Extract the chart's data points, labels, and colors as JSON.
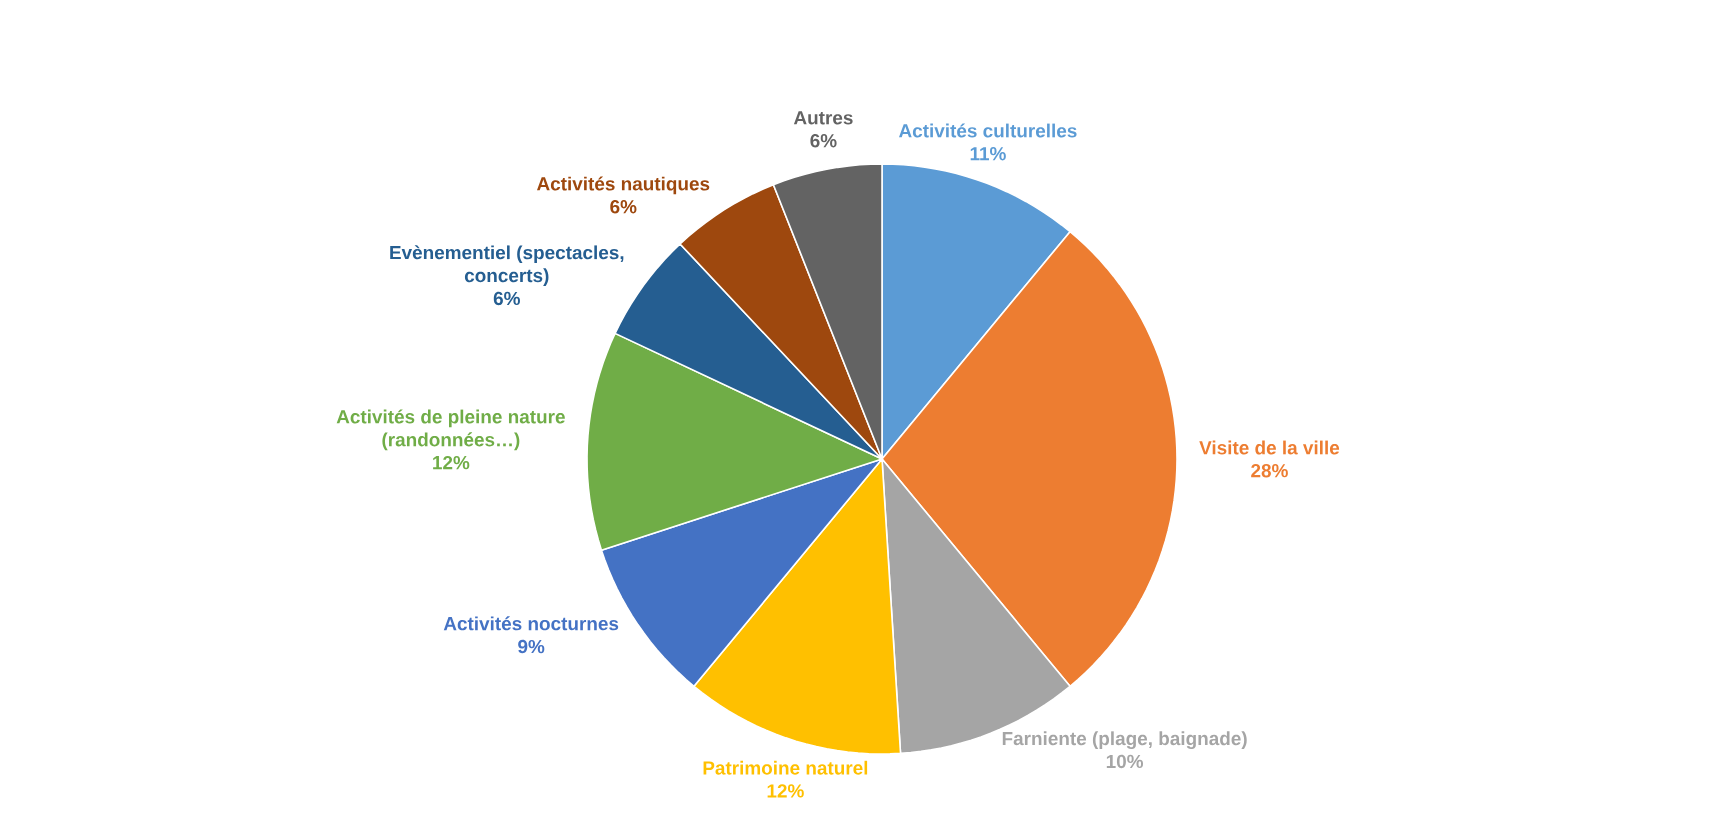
{
  "chart_data": {
    "type": "pie",
    "categories": [
      "Activités culturelles",
      "Visite de la ville",
      "Farniente (plage, baignade)",
      "Patrimoine naturel",
      "Activités nocturnes",
      "Activités de pleine nature (randonnées…)",
      "Evènementiel (spectacles, concerts)",
      "Activités nautiques",
      "Autres"
    ],
    "values": [
      11,
      28,
      10,
      12,
      9,
      12,
      6,
      6,
      6
    ],
    "value_labels": [
      "11%",
      "28%",
      "10%",
      "12%",
      "9%",
      "12%",
      "6%",
      "6%",
      "6%"
    ],
    "colors": [
      "#5b9bd5",
      "#ed7d31",
      "#a5a5a5",
      "#ffc000",
      "#4472c4",
      "#70ad47",
      "#255e91",
      "#9e480e",
      "#636363"
    ]
  }
}
